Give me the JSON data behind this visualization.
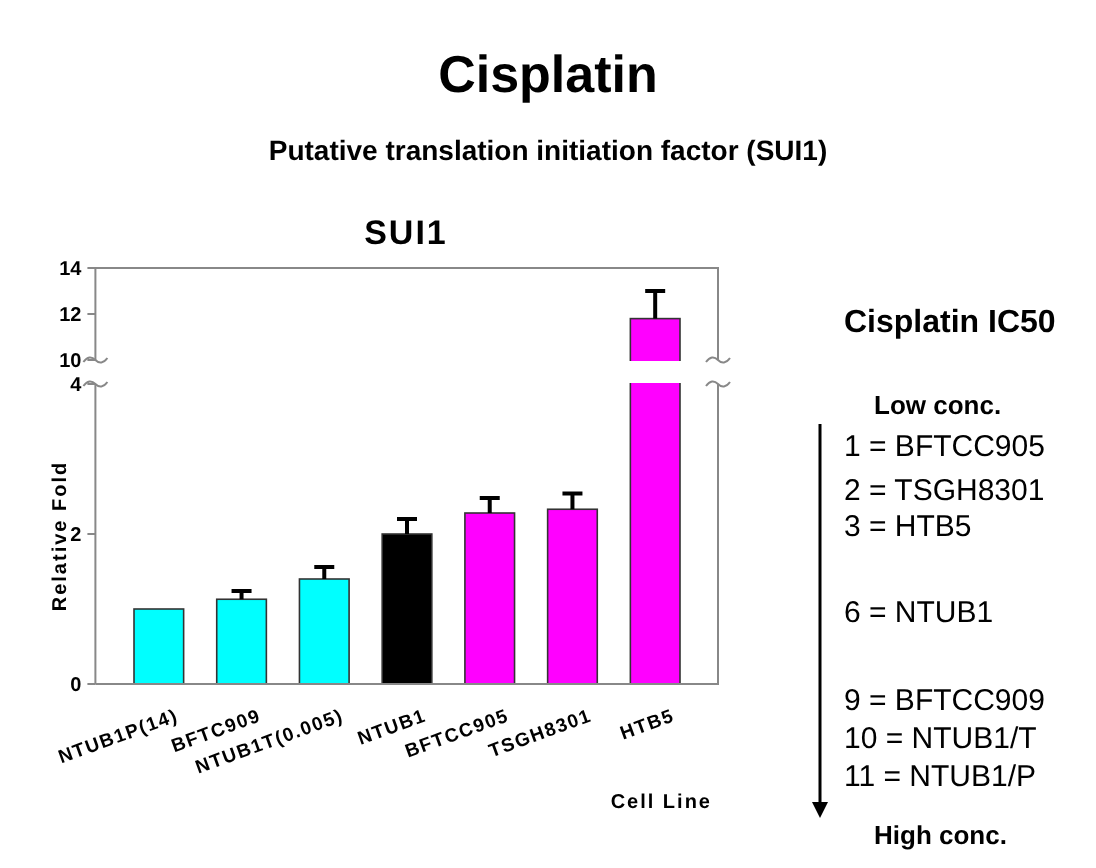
{
  "chart_data": [
    {
      "type": "bar",
      "title": "Cisplatin",
      "subtitle": "Putative translation initiation factor (SUI1)",
      "ylabel": "Relative Fold",
      "categories": [
        null,
        null,
        null,
        null,
        null,
        null,
        null
      ],
      "values": [
        null,
        null,
        null,
        null,
        null,
        null,
        11.8
      ],
      "errors": [
        null,
        null,
        null,
        null,
        null,
        null,
        1.2
      ],
      "color": "#ff00ff",
      "grid": false,
      "ylim": [
        10,
        14
      ],
      "yticks": [
        10,
        12,
        14
      ],
      "tick_labels": "y",
      "annotations": [
        "SUI1",
        "Cisplatin IC50",
        "Low conc.",
        "1 = BFTCC905",
        "2 = TSGH8301",
        "3 = HTB5",
        "6 = NTUB1",
        "9 = BFTCC909",
        "10 = NTUB1/T",
        "11 = NTUB1/P",
        "High conc."
      ]
    },
    {
      "type": "bar",
      "xlabel": "Cell Line",
      "categories": [
        "NTUB1P(14)",
        "BFTC909",
        "NTUB1T(0.005)",
        "NTUB1",
        "BFTCC905",
        "TSGH8301",
        "HTB5"
      ],
      "values": [
        1.0,
        1.13,
        1.4,
        2.0,
        2.28,
        2.33,
        null
      ],
      "errors": [
        null,
        0.11,
        0.16,
        0.2,
        0.2,
        0.21,
        null
      ],
      "colors": [
        "#00ffff",
        "#00ffff",
        "#00ffff",
        "#000000",
        "#ff00ff",
        "#ff00ff",
        null
      ],
      "ylim": [
        0,
        4
      ],
      "yticks": [
        0,
        2,
        4
      ],
      "grid": false
    }
  ]
}
